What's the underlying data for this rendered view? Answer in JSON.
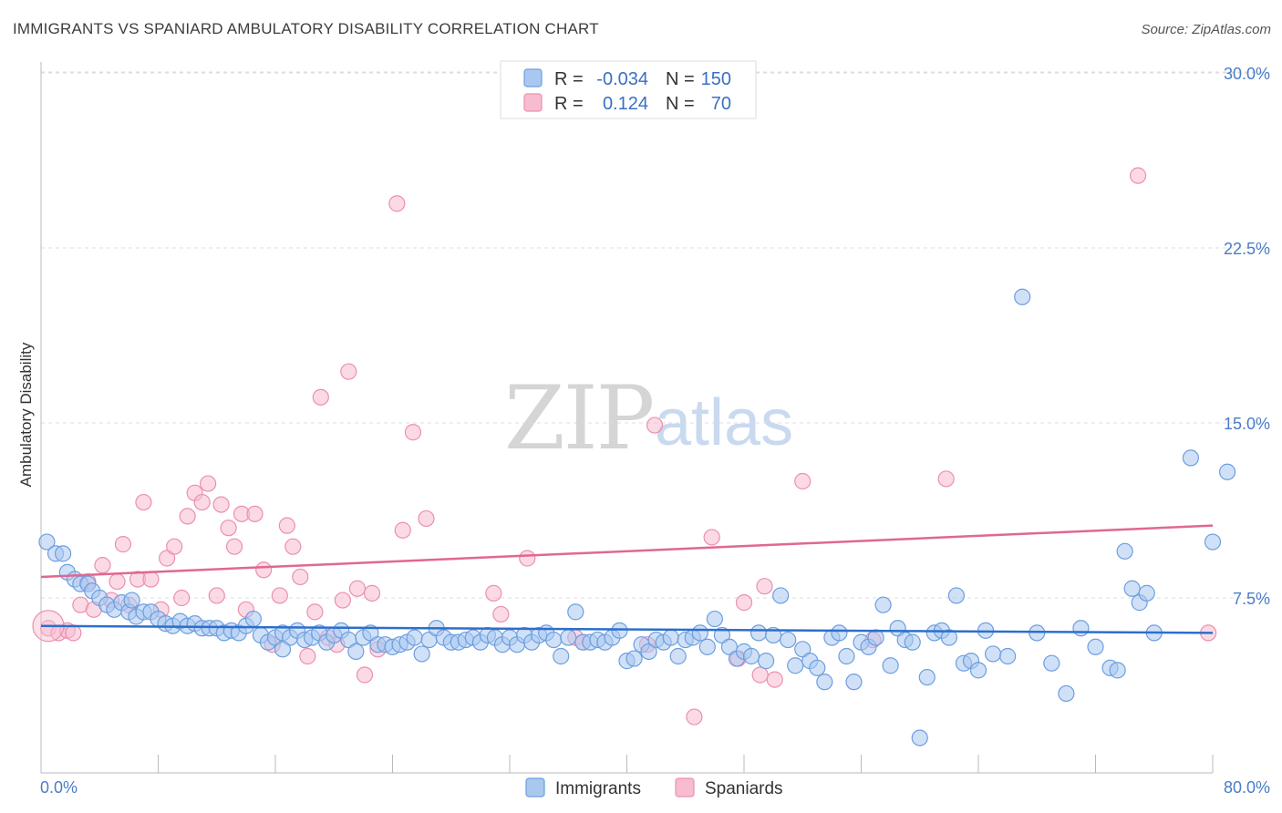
{
  "header": {
    "title": "IMMIGRANTS VS SPANIARD AMBULATORY DISABILITY CORRELATION CHART",
    "source": "Source: ZipAtlas.com"
  },
  "watermark": {
    "part1": "ZIP",
    "part2": "atlas"
  },
  "colors": {
    "immigrants_fill": "#a9c8f0",
    "immigrants_stroke": "#6d9ee0",
    "immigrants_line": "#2d6fcc",
    "spaniards_fill": "#f7bcd0",
    "spaniards_stroke": "#ec8fb0",
    "spaniards_line": "#e06890"
  },
  "legend": {
    "rows": [
      {
        "r_label": "R =",
        "r_value": "-0.034",
        "n_label": "N =",
        "n_value": "150"
      },
      {
        "r_label": "R =",
        "r_value": "0.124",
        "n_label": "N =",
        "n_value": "70"
      }
    ]
  },
  "chart_data": {
    "type": "scatter",
    "title": "IMMIGRANTS VS SPANIARD AMBULATORY DISABILITY CORRELATION CHART",
    "ylabel": "Ambulatory Disability",
    "xlim": [
      0,
      80
    ],
    "ylim": [
      0,
      31
    ],
    "y_ticks": [
      {
        "value": 7.5,
        "label": "7.5%"
      },
      {
        "value": 15.0,
        "label": "15.0%"
      },
      {
        "value": 22.5,
        "label": "22.5%"
      },
      {
        "value": 30.0,
        "label": "30.0%"
      }
    ],
    "x_tick_labels": [
      {
        "value": 0,
        "label": "0.0%"
      },
      {
        "value": 80,
        "label": "80.0%"
      }
    ],
    "grid": true,
    "legend_position": "top-center",
    "series": [
      {
        "name": "Immigrants",
        "r": -0.034,
        "n": 150,
        "trend": [
          [
            0,
            6.3
          ],
          [
            80,
            6.0
          ]
        ],
        "points": [
          [
            0.4,
            9.9
          ],
          [
            1.0,
            9.4
          ],
          [
            1.5,
            9.4
          ],
          [
            1.8,
            8.6
          ],
          [
            2.3,
            8.3
          ],
          [
            2.7,
            8.1
          ],
          [
            3.2,
            8.1
          ],
          [
            3.5,
            7.8
          ],
          [
            4.0,
            7.5
          ],
          [
            4.5,
            7.2
          ],
          [
            5.0,
            7.0
          ],
          [
            5.5,
            7.3
          ],
          [
            6.0,
            6.9
          ],
          [
            6.5,
            6.7
          ],
          [
            7.0,
            6.9
          ],
          [
            7.5,
            6.9
          ],
          [
            8.0,
            6.6
          ],
          [
            8.5,
            6.4
          ],
          [
            9.0,
            6.3
          ],
          [
            9.5,
            6.5
          ],
          [
            10.0,
            6.3
          ],
          [
            10.5,
            6.4
          ],
          [
            11.0,
            6.2
          ],
          [
            11.5,
            6.2
          ],
          [
            12.0,
            6.2
          ],
          [
            12.5,
            6.0
          ],
          [
            13.0,
            6.1
          ],
          [
            13.5,
            6.0
          ],
          [
            14.0,
            6.3
          ],
          [
            14.5,
            6.6
          ],
          [
            15.0,
            5.9
          ],
          [
            15.5,
            5.6
          ],
          [
            16.0,
            5.8
          ],
          [
            16.5,
            6.0
          ],
          [
            17.0,
            5.8
          ],
          [
            17.5,
            6.1
          ],
          [
            18.0,
            5.7
          ],
          [
            18.5,
            5.8
          ],
          [
            19.0,
            6.0
          ],
          [
            19.5,
            5.6
          ],
          [
            20.0,
            5.9
          ],
          [
            20.5,
            6.1
          ],
          [
            21.0,
            5.7
          ],
          [
            21.5,
            5.2
          ],
          [
            22.0,
            5.8
          ],
          [
            22.5,
            6.0
          ],
          [
            23.0,
            5.5
          ],
          [
            23.5,
            5.5
          ],
          [
            24.0,
            5.4
          ],
          [
            24.5,
            5.5
          ],
          [
            25.0,
            5.6
          ],
          [
            25.5,
            5.8
          ],
          [
            26.0,
            5.1
          ],
          [
            26.5,
            5.7
          ],
          [
            27.0,
            6.2
          ],
          [
            27.5,
            5.8
          ],
          [
            28.0,
            5.6
          ],
          [
            28.5,
            5.6
          ],
          [
            29.0,
            5.7
          ],
          [
            29.5,
            5.8
          ],
          [
            30.0,
            5.6
          ],
          [
            30.5,
            5.9
          ],
          [
            31.0,
            5.8
          ],
          [
            31.5,
            5.5
          ],
          [
            32.0,
            5.8
          ],
          [
            32.5,
            5.5
          ],
          [
            33.0,
            5.9
          ],
          [
            33.5,
            5.6
          ],
          [
            34.0,
            5.9
          ],
          [
            34.5,
            6.0
          ],
          [
            35.0,
            5.7
          ],
          [
            35.5,
            5.0
          ],
          [
            36.0,
            5.8
          ],
          [
            36.5,
            6.9
          ],
          [
            37.0,
            5.6
          ],
          [
            37.5,
            5.6
          ],
          [
            38.0,
            5.7
          ],
          [
            38.5,
            5.6
          ],
          [
            39.0,
            5.8
          ],
          [
            39.5,
            6.1
          ],
          [
            40.0,
            4.8
          ],
          [
            40.5,
            4.9
          ],
          [
            41.0,
            5.5
          ],
          [
            41.5,
            5.2
          ],
          [
            42.0,
            5.7
          ],
          [
            42.5,
            5.6
          ],
          [
            43.0,
            5.8
          ],
          [
            43.5,
            5.0
          ],
          [
            44.0,
            5.7
          ],
          [
            44.5,
            5.8
          ],
          [
            45.0,
            6.0
          ],
          [
            45.5,
            5.4
          ],
          [
            46.0,
            6.6
          ],
          [
            46.5,
            5.9
          ],
          [
            47.0,
            5.4
          ],
          [
            47.5,
            4.9
          ],
          [
            48.0,
            5.2
          ],
          [
            48.5,
            5.0
          ],
          [
            49.0,
            6.0
          ],
          [
            49.5,
            4.8
          ],
          [
            50.0,
            5.9
          ],
          [
            50.5,
            7.6
          ],
          [
            51.0,
            5.7
          ],
          [
            51.5,
            4.6
          ],
          [
            52.0,
            5.3
          ],
          [
            52.5,
            4.8
          ],
          [
            53.0,
            4.5
          ],
          [
            53.5,
            3.9
          ],
          [
            54.0,
            5.8
          ],
          [
            54.5,
            6.0
          ],
          [
            55.0,
            5.0
          ],
          [
            55.5,
            3.9
          ],
          [
            56.0,
            5.6
          ],
          [
            56.5,
            5.4
          ],
          [
            57.0,
            5.8
          ],
          [
            57.5,
            7.2
          ],
          [
            58.0,
            4.6
          ],
          [
            58.5,
            6.2
          ],
          [
            59.0,
            5.7
          ],
          [
            59.5,
            5.6
          ],
          [
            60.0,
            1.5
          ],
          [
            60.5,
            4.1
          ],
          [
            61.0,
            6.0
          ],
          [
            61.5,
            6.1
          ],
          [
            62.0,
            5.8
          ],
          [
            62.5,
            7.6
          ],
          [
            63.0,
            4.7
          ],
          [
            63.5,
            4.8
          ],
          [
            64.0,
            4.4
          ],
          [
            64.5,
            6.1
          ],
          [
            65.0,
            5.1
          ],
          [
            66.0,
            5.0
          ],
          [
            67.0,
            20.4
          ],
          [
            68.0,
            6.0
          ],
          [
            69.0,
            4.7
          ],
          [
            70.0,
            3.4
          ],
          [
            71.0,
            6.2
          ],
          [
            72.0,
            5.4
          ],
          [
            73.0,
            4.5
          ],
          [
            73.5,
            4.4
          ],
          [
            74.0,
            9.5
          ],
          [
            74.5,
            7.9
          ],
          [
            75.0,
            7.3
          ],
          [
            75.5,
            7.7
          ],
          [
            76.0,
            6.0
          ],
          [
            78.5,
            13.5
          ],
          [
            80.0,
            9.9
          ],
          [
            81.0,
            12.9
          ],
          [
            16.5,
            5.3
          ],
          [
            6.2,
            7.4
          ]
        ]
      },
      {
        "name": "Spaniards",
        "r": 0.124,
        "n": 70,
        "trend": [
          [
            0,
            8.4
          ],
          [
            80,
            10.6
          ]
        ],
        "points": [
          [
            0.5,
            6.2
          ],
          [
            1.2,
            6.0
          ],
          [
            1.8,
            6.1
          ],
          [
            2.2,
            6.0
          ],
          [
            2.7,
            7.2
          ],
          [
            3.2,
            8.2
          ],
          [
            3.6,
            7.0
          ],
          [
            4.2,
            8.9
          ],
          [
            4.8,
            7.4
          ],
          [
            5.2,
            8.2
          ],
          [
            5.6,
            9.8
          ],
          [
            6.0,
            7.2
          ],
          [
            6.6,
            8.3
          ],
          [
            7.0,
            11.6
          ],
          [
            7.5,
            8.3
          ],
          [
            8.2,
            7.0
          ],
          [
            8.6,
            9.2
          ],
          [
            9.1,
            9.7
          ],
          [
            9.6,
            7.5
          ],
          [
            10.0,
            11.0
          ],
          [
            10.5,
            12.0
          ],
          [
            11.0,
            11.6
          ],
          [
            11.4,
            12.4
          ],
          [
            12.0,
            7.6
          ],
          [
            12.3,
            11.5
          ],
          [
            12.8,
            10.5
          ],
          [
            13.2,
            9.7
          ],
          [
            13.7,
            11.1
          ],
          [
            14.0,
            7.0
          ],
          [
            14.6,
            11.1
          ],
          [
            15.2,
            8.7
          ],
          [
            15.8,
            5.5
          ],
          [
            16.3,
            7.6
          ],
          [
            16.8,
            10.6
          ],
          [
            17.2,
            9.7
          ],
          [
            17.7,
            8.4
          ],
          [
            18.2,
            5.0
          ],
          [
            18.7,
            6.9
          ],
          [
            19.1,
            16.1
          ],
          [
            19.6,
            5.8
          ],
          [
            20.2,
            5.5
          ],
          [
            20.6,
            7.4
          ],
          [
            21.0,
            17.2
          ],
          [
            21.6,
            7.9
          ],
          [
            22.1,
            4.2
          ],
          [
            22.6,
            7.7
          ],
          [
            23.0,
            5.3
          ],
          [
            24.3,
            24.4
          ],
          [
            24.7,
            10.4
          ],
          [
            25.4,
            14.6
          ],
          [
            26.3,
            10.9
          ],
          [
            30.9,
            7.7
          ],
          [
            31.4,
            6.8
          ],
          [
            33.2,
            9.2
          ],
          [
            36.5,
            5.8
          ],
          [
            37.0,
            5.6
          ],
          [
            41.4,
            5.5
          ],
          [
            41.9,
            14.9
          ],
          [
            44.6,
            2.4
          ],
          [
            45.8,
            10.1
          ],
          [
            47.6,
            4.9
          ],
          [
            48.0,
            7.3
          ],
          [
            49.1,
            4.2
          ],
          [
            49.4,
            8.0
          ],
          [
            50.1,
            4.0
          ],
          [
            52.0,
            12.5
          ],
          [
            56.8,
            5.7
          ],
          [
            61.8,
            12.6
          ],
          [
            74.9,
            25.6
          ],
          [
            79.7,
            6.0
          ]
        ]
      }
    ]
  },
  "bottom_legend": {
    "items": [
      {
        "label": "Immigrants"
      },
      {
        "label": "Spaniards"
      }
    ]
  }
}
